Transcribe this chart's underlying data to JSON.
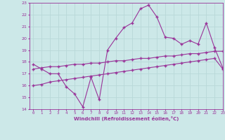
{
  "title": "",
  "xlabel": "Windchill (Refroidissement éolien,°C)",
  "ylabel": "",
  "bg_color": "#cce8e8",
  "grid_color": "#b8d8d8",
  "line_color": "#993399",
  "xlim": [
    -0.5,
    23
  ],
  "ylim": [
    14,
    23
  ],
  "xticks": [
    0,
    1,
    2,
    3,
    4,
    5,
    6,
    7,
    8,
    9,
    10,
    11,
    12,
    13,
    14,
    15,
    16,
    17,
    18,
    19,
    20,
    21,
    22,
    23
  ],
  "yticks": [
    14,
    15,
    16,
    17,
    18,
    19,
    20,
    21,
    22,
    23
  ],
  "line1_x": [
    0,
    1,
    2,
    3,
    4,
    5,
    6,
    7,
    8,
    9,
    10,
    11,
    12,
    13,
    14,
    15,
    16,
    17,
    18,
    19,
    20,
    21,
    22,
    23
  ],
  "line1_y": [
    17.8,
    17.4,
    17.0,
    17.0,
    15.9,
    15.3,
    14.2,
    16.7,
    14.8,
    19.0,
    20.0,
    20.9,
    21.3,
    22.5,
    22.8,
    21.8,
    20.1,
    20.0,
    19.5,
    19.8,
    19.5,
    21.3,
    19.2,
    17.5
  ],
  "line2_x": [
    0,
    1,
    2,
    3,
    4,
    5,
    6,
    7,
    8,
    9,
    10,
    11,
    12,
    13,
    14,
    15,
    16,
    17,
    18,
    19,
    20,
    21,
    22,
    23
  ],
  "line2_y": [
    17.4,
    17.5,
    17.6,
    17.6,
    17.7,
    17.8,
    17.8,
    17.9,
    17.9,
    18.0,
    18.1,
    18.1,
    18.2,
    18.3,
    18.3,
    18.4,
    18.5,
    18.5,
    18.6,
    18.7,
    18.7,
    18.8,
    18.9,
    18.9
  ],
  "line3_x": [
    0,
    1,
    2,
    3,
    4,
    5,
    6,
    7,
    8,
    9,
    10,
    11,
    12,
    13,
    14,
    15,
    16,
    17,
    18,
    19,
    20,
    21,
    22,
    23
  ],
  "line3_y": [
    16.0,
    16.1,
    16.3,
    16.4,
    16.5,
    16.6,
    16.7,
    16.8,
    16.9,
    17.0,
    17.1,
    17.2,
    17.3,
    17.4,
    17.5,
    17.6,
    17.7,
    17.8,
    17.9,
    18.0,
    18.1,
    18.2,
    18.3,
    17.4
  ],
  "figsize": [
    3.2,
    2.0
  ],
  "dpi": 100
}
